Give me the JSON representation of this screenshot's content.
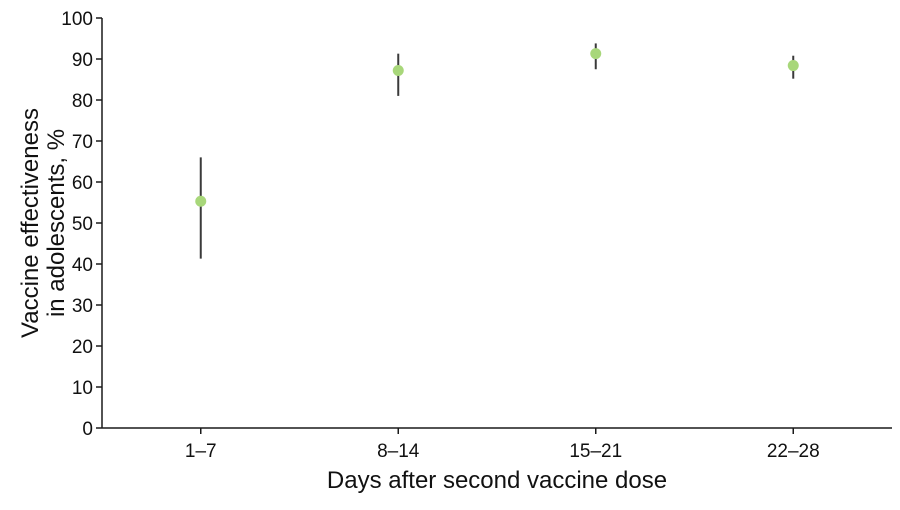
{
  "chart_data": {
    "type": "scatter",
    "xlabel": "Days after second vaccine dose",
    "ylabel_lines": [
      "Vaccine effectiveness",
      "in adolescents, %"
    ],
    "categories": [
      "1–7",
      "8–14",
      "15–21",
      "22–28"
    ],
    "ylim": [
      0,
      100
    ],
    "yticks": [
      "0",
      "10",
      "20",
      "30",
      "40",
      "50",
      "60",
      "70",
      "80",
      "90",
      "100"
    ],
    "grid": false,
    "series": [
      {
        "values": [
          55.3,
          87.2,
          91.3,
          88.4
        ],
        "lower": [
          41.3,
          81.0,
          87.5,
          85.2
        ],
        "upper": [
          66.0,
          91.3,
          93.8,
          90.8
        ]
      }
    ],
    "colors": {
      "marker": "#a8d77a",
      "errorbar": "#3a3a3a",
      "axis": "#1a1a1a"
    }
  }
}
